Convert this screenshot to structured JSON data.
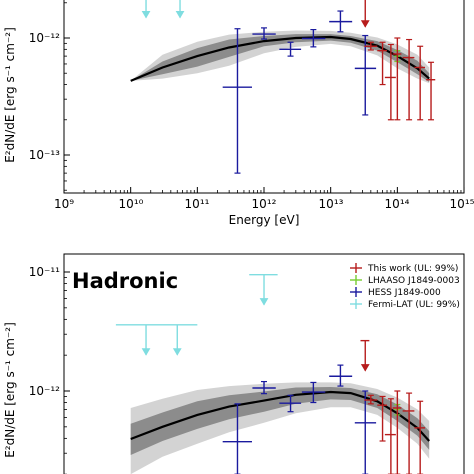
{
  "chart_data": [
    {
      "type": "scatter",
      "panel": "top",
      "title": "",
      "xlabel": "Energy [eV]",
      "ylabel": "E²dN/dE [erg s⁻¹ cm⁻²]",
      "xscale": "log",
      "yscale": "log",
      "xlim": [
        1000000000.0,
        1000000000000000.0
      ],
      "x_tick_labels": [
        "10⁹",
        "10¹⁰",
        "10¹¹",
        "10¹²",
        "10¹³",
        "10¹⁴",
        "10¹⁵"
      ],
      "y_tick_labels": [
        "10⁻¹²",
        "10⁻¹³"
      ],
      "model": {
        "name": "",
        "color": "#000000",
        "x": [
          10000000000.0,
          30000000000.0,
          100000000000.0,
          300000000000.0,
          1000000000000.0,
          3000000000000.0,
          10000000000000.0,
          20000000000000.0,
          50000000000000.0,
          100000000000000.0,
          200000000000000.0,
          300000000000000.0
        ],
        "y": [
          4.3e-13,
          5.6e-13,
          7e-13,
          8.3e-13,
          9.4e-13,
          1e-12,
          1.02e-12,
          9.8e-13,
          8.6e-13,
          7e-13,
          5.5e-13,
          4.5e-13
        ],
        "band_inner": [
          [
            4.3e-13,
            4.3e-13
          ],
          [
            4.9e-13,
            6.3e-13
          ],
          [
            5.7e-13,
            8.2e-13
          ],
          [
            6.9e-13,
            9.7e-13
          ],
          [
            8.5e-13,
            1.04e-12
          ],
          [
            9.2e-13,
            1.08e-12
          ],
          [
            9.5e-13,
            1.08e-12
          ],
          [
            9.1e-13,
            1.04e-12
          ],
          [
            7.8e-13,
            9.4e-13
          ],
          [
            6.2e-13,
            7.9e-13
          ],
          [
            4.9e-13,
            6.4e-13
          ],
          [
            4.2e-13,
            5e-13
          ]
        ],
        "band_outer": [
          [
            4.3e-13,
            4.3e-13
          ],
          [
            4.5e-13,
            7.2e-13
          ],
          [
            5e-13,
            9.3e-13
          ],
          [
            5.8e-13,
            1.07e-12
          ],
          [
            7.4e-13,
            1.13e-12
          ],
          [
            8.4e-13,
            1.16e-12
          ],
          [
            8.9e-13,
            1.15e-12
          ],
          [
            8.5e-13,
            1.11e-12
          ],
          [
            7.1e-13,
            1.01e-12
          ],
          [
            5.5e-13,
            8.8e-13
          ],
          [
            4.5e-13,
            7.2e-13
          ],
          [
            4.1e-13,
            5.6e-13
          ]
        ]
      },
      "series": [
        {
          "name": "HESS J1849-000",
          "color": "#1a1a9e",
          "points": [
            {
              "x": 400000000000.0,
              "y": 3.8e-13,
              "xerr": [
                240000000000.0,
                660000000000.0
              ],
              "yerr": [
                7e-14,
                1.2e-12
              ]
            },
            {
              "x": 1000000000000.0,
              "y": 1.08e-12,
              "xerr": [
                670000000000.0,
                1500000000000.0
              ],
              "yerr": [
                9.8e-13,
                1.22e-12
              ]
            },
            {
              "x": 2500000000000.0,
              "y": 8e-13,
              "xerr": [
                1700000000000.0,
                3600000000000.0
              ],
              "yerr": [
                7e-13,
                9.2e-13
              ]
            },
            {
              "x": 5500000000000.0,
              "y": 9.9e-13,
              "xerr": [
                3700000000000.0,
                8300000000000.0
              ],
              "yerr": [
                8.4e-13,
                1.18e-12
              ]
            },
            {
              "x": 14000000000000.0,
              "y": 1.38e-12,
              "xerr": [
                9500000000000.0,
                21000000000000.0
              ],
              "yerr": [
                1.13e-12,
                1.7e-12
              ]
            },
            {
              "x": 33000000000000.0,
              "y": 5.5e-13,
              "xerr": [
                23000000000000.0,
                48000000000000.0
              ],
              "yerr": [
                2.2e-13,
                1.05e-12
              ]
            }
          ]
        },
        {
          "name": "LHAASO J1849-0003",
          "color": "#77cc33",
          "points": [
            {
              "x": 100000000000000.0,
              "y": 7e-13,
              "xerr": [
                90000000000000.0,
                110000000000000.0
              ],
              "yerr": [
                6.3e-13,
                7.8e-13
              ]
            }
          ]
        },
        {
          "name": "This work (UL: 99%)",
          "color": "#b71c1c",
          "points": [
            {
              "x": 40000000000000.0,
              "y": 8.5e-13,
              "xerr": [
                32000000000000.0,
                50000000000000.0
              ],
              "yerr": [
                7.9e-13,
                9.2e-13
              ]
            },
            {
              "x": 60000000000000.0,
              "y": 7.8e-13,
              "xerr": [
                50000000000000.0,
                70000000000000.0
              ],
              "yerr": [
                4e-13,
                9.2e-13
              ]
            },
            {
              "x": 80000000000000.0,
              "y": 4.6e-13,
              "xerr": [
                65000000000000.0,
                95000000000000.0
              ],
              "yerr": [
                2e-13,
                8.8e-13
              ]
            },
            {
              "x": 100000000000000.0,
              "y": 7.3e-13,
              "xerr": [
                85000000000000.0,
                115000000000000.0
              ],
              "yerr": [
                2e-13,
                1e-12
              ]
            },
            {
              "x": 150000000000000.0,
              "y": 6.8e-13,
              "xerr": [
                120000000000000.0,
                180000000000000.0
              ],
              "yerr": [
                2e-13,
                9.7e-13
              ]
            },
            {
              "x": 220000000000000.0,
              "y": 5.6e-13,
              "xerr": [
                180000000000000.0,
                260000000000000.0
              ],
              "yerr": [
                2e-13,
                8.5e-13
              ]
            },
            {
              "x": 320000000000000.0,
              "y": 4.4e-13,
              "xerr": [
                270000000000000.0,
                370000000000000.0
              ],
              "yerr": [
                2e-13,
                6.2e-13
              ]
            }
          ],
          "upper_limits": [
            {
              "x": 33000000000000.0,
              "y": 2.25e-12,
              "xerr": [
                28000000000000.0,
                38000000000000.0
              ]
            }
          ]
        },
        {
          "name": "Fermi-LAT (UL: 99%)",
          "color": "#7fdde0",
          "upper_limits": [
            {
              "x": 17000000000.0,
              "y": 2.7e-12,
              "xerr": [
                8000000000.0,
                27000000000.0
              ]
            },
            {
              "x": 55000000000.0,
              "y": 2.7e-12,
              "xerr": [
                35000000000.0,
                75000000000.0
              ]
            }
          ]
        }
      ]
    },
    {
      "type": "scatter",
      "panel": "bottom",
      "title": "Hadronic",
      "xlabel": "",
      "ylabel": "E²dN/dE [erg s⁻¹ cm⁻²]",
      "xscale": "log",
      "yscale": "log",
      "xlim": [
        1000000000.0,
        1000000000000000.0
      ],
      "y_tick_labels": [
        "10⁻¹¹",
        "10⁻¹²"
      ],
      "legend": {
        "placement": "top-right",
        "entries": [
          {
            "label": "This work (UL: 99%)",
            "color": "#b71c1c"
          },
          {
            "label": "LHAASO J1849-0003",
            "color": "#77cc33"
          },
          {
            "label": "HESS J1849-000",
            "color": "#1a1a9e"
          },
          {
            "label": "Fermi-LAT (UL: 99%)",
            "color": "#7fdde0"
          }
        ]
      },
      "model": {
        "name": "",
        "color": "#000000",
        "x": [
          10000000000.0,
          30000000000.0,
          100000000000.0,
          300000000000.0,
          1000000000000.0,
          3000000000000.0,
          10000000000000.0,
          20000000000000.0,
          50000000000000.0,
          100000000000000.0,
          200000000000000.0,
          300000000000000.0
        ],
        "y": [
          3.95e-13,
          5e-13,
          6.3e-13,
          7.4e-13,
          8.3e-13,
          9.3e-13,
          9.8e-13,
          9.6e-13,
          8.2e-13,
          6.5e-13,
          4.9e-13,
          3.8e-13
        ],
        "band_inner": [
          [
            2.9e-13,
            5.3e-13
          ],
          [
            3.8e-13,
            6.6e-13
          ],
          [
            4.8e-13,
            8.2e-13
          ],
          [
            5.8e-13,
            9.2e-13
          ],
          [
            6.7e-13,
            9.9e-13
          ],
          [
            7.8e-13,
            1.07e-12
          ],
          [
            8.5e-13,
            1.08e-12
          ],
          [
            8.4e-13,
            1.06e-12
          ],
          [
            7.2e-13,
            9.4e-13
          ],
          [
            5.6e-13,
            7.7e-13
          ],
          [
            4.2e-13,
            5.9e-13
          ],
          [
            3.2e-13,
            4.6e-13
          ]
        ],
        "band_outer": [
          [
            2e-13,
            7.2e-13
          ],
          [
            2.8e-13,
            8.6e-13
          ],
          [
            3.6e-13,
            1.02e-12
          ],
          [
            4.5e-13,
            1.1e-12
          ],
          [
            5.4e-13,
            1.15e-12
          ],
          [
            6.5e-13,
            1.18e-12
          ],
          [
            7.3e-13,
            1.18e-12
          ],
          [
            7.3e-13,
            1.16e-12
          ],
          [
            6.3e-13,
            1.04e-12
          ],
          [
            4.9e-13,
            8.8e-13
          ],
          [
            3.6e-13,
            7e-13
          ],
          [
            2.7e-13,
            5.6e-13
          ]
        ]
      },
      "series": [
        {
          "name": "HESS J1849-000",
          "color": "#1a1a9e",
          "points": [
            {
              "x": 400000000000.0,
              "y": 3.75e-13,
              "xerr": [
                240000000000.0,
                660000000000.0
              ],
              "yerr": [
                2e-13,
                7.8e-13
              ]
            },
            {
              "x": 1000000000000.0,
              "y": 1.06e-12,
              "xerr": [
                670000000000.0,
                1500000000000.0
              ],
              "yerr": [
                9.5e-13,
                1.2e-12
              ]
            },
            {
              "x": 2500000000000.0,
              "y": 7.9e-13,
              "xerr": [
                1700000000000.0,
                3600000000000.0
              ],
              "yerr": [
                6.7e-13,
                9.2e-13
              ]
            },
            {
              "x": 5500000000000.0,
              "y": 9.8e-13,
              "xerr": [
                3700000000000.0,
                8300000000000.0
              ],
              "yerr": [
                8e-13,
                1.18e-12
              ]
            },
            {
              "x": 14000000000000.0,
              "y": 1.33e-12,
              "xerr": [
                9500000000000.0,
                21000000000000.0
              ],
              "yerr": [
                1.1e-12,
                1.65e-12
              ]
            },
            {
              "x": 33000000000000.0,
              "y": 5.4e-13,
              "xerr": [
                23000000000000.0,
                48000000000000.0
              ],
              "yerr": [
                2e-13,
                1e-12
              ]
            }
          ]
        },
        {
          "name": "LHAASO J1849-0003",
          "color": "#77cc33",
          "points": [
            {
              "x": 100000000000000.0,
              "y": 7e-13,
              "xerr": [
                90000000000000.0,
                110000000000000.0
              ],
              "yerr": [
                6.3e-13,
                7.7e-13
              ]
            }
          ]
        },
        {
          "name": "This work (UL: 99%)",
          "color": "#b71c1c",
          "points": [
            {
              "x": 40000000000000.0,
              "y": 8.4e-13,
              "xerr": [
                32000000000000.0,
                50000000000000.0
              ],
              "yerr": [
                7.8e-13,
                9.2e-13
              ]
            },
            {
              "x": 60000000000000.0,
              "y": 7.6e-13,
              "xerr": [
                50000000000000.0,
                70000000000000.0
              ],
              "yerr": [
                3.8e-13,
                9e-13
              ]
            },
            {
              "x": 80000000000000.0,
              "y": 4.3e-13,
              "xerr": [
                65000000000000.0,
                95000000000000.0
              ],
              "yerr": [
                2e-13,
                8.6e-13
              ]
            },
            {
              "x": 100000000000000.0,
              "y": 7.2e-13,
              "xerr": [
                85000000000000.0,
                115000000000000.0
              ],
              "yerr": [
                2e-13,
                1e-12
              ]
            },
            {
              "x": 150000000000000.0,
              "y": 6.8e-13,
              "xerr": [
                120000000000000.0,
                180000000000000.0
              ],
              "yerr": [
                2e-13,
                9.6e-13
              ]
            },
            {
              "x": 220000000000000.0,
              "y": 4.9e-13,
              "xerr": [
                180000000000000.0,
                260000000000000.0
              ],
              "yerr": [
                2e-13,
                8.2e-13
              ]
            }
          ],
          "upper_limits": [
            {
              "x": 33000000000000.0,
              "y": 2.65e-12,
              "xerr": [
                28000000000000.0,
                38000000000000.0
              ]
            }
          ]
        },
        {
          "name": "Fermi-LAT (UL: 99%)",
          "color": "#7fdde0",
          "upper_limits": [
            {
              "x": 17000000000.0,
              "y": 3.6e-12,
              "xerr": [
                6000000000.0,
                30000000000.0
              ]
            },
            {
              "x": 50000000000.0,
              "y": 3.6e-12,
              "xerr": [
                30000000000.0,
                100000000000.0
              ]
            },
            {
              "x": 1000000000000.0,
              "y": 9.5e-12,
              "xerr": [
                600000000000.0,
                1600000000000.0
              ]
            }
          ]
        }
      ]
    }
  ],
  "colors": {
    "band_outer": "#d3d3d3",
    "band_inner": "#8c8c8c",
    "axis": "#000000"
  }
}
